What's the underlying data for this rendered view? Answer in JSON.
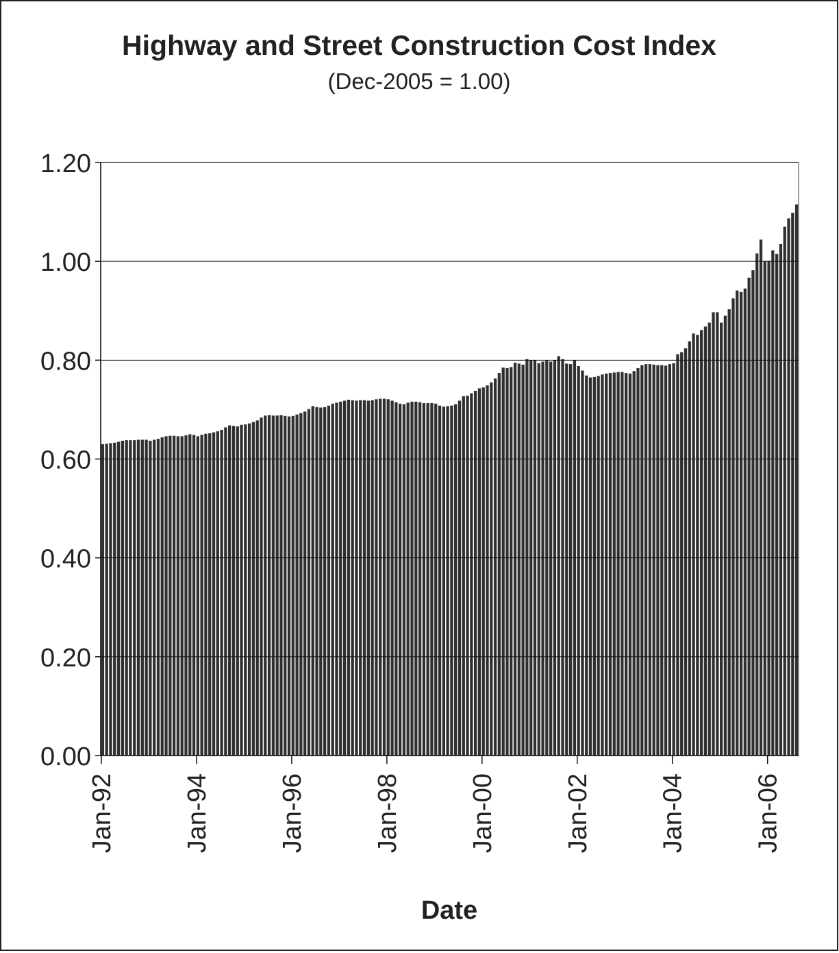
{
  "chart_data": {
    "type": "bar",
    "title": "Highway and Street Construction Cost Index",
    "subtitle": "(Dec-2005 = 1.00)",
    "x_label": "Date",
    "color": "#303030",
    "grid": true,
    "categories": [
      "Jan-92",
      null,
      null,
      null,
      null,
      null,
      null,
      null,
      null,
      null,
      null,
      null,
      null,
      null,
      null,
      null,
      null,
      null,
      null,
      null,
      null,
      null,
      null,
      null,
      "Jan-94",
      null,
      null,
      null,
      null,
      null,
      null,
      null,
      null,
      null,
      null,
      null,
      null,
      null,
      null,
      null,
      null,
      null,
      null,
      null,
      null,
      null,
      null,
      null,
      "Jan-96",
      null,
      null,
      null,
      null,
      null,
      null,
      null,
      null,
      null,
      null,
      null,
      null,
      null,
      null,
      null,
      null,
      null,
      null,
      null,
      null,
      null,
      null,
      null,
      "Jan-98",
      null,
      null,
      null,
      null,
      null,
      null,
      null,
      null,
      null,
      null,
      null,
      null,
      null,
      null,
      null,
      null,
      null,
      null,
      null,
      null,
      null,
      null,
      null,
      "Jan-00",
      null,
      null,
      null,
      null,
      null,
      null,
      null,
      null,
      null,
      null,
      null,
      null,
      null,
      null,
      null,
      null,
      null,
      null,
      null,
      null,
      null,
      null,
      null,
      "Jan-02",
      null,
      null,
      null,
      null,
      null,
      null,
      null,
      null,
      null,
      null,
      null,
      null,
      null,
      null,
      null,
      null,
      null,
      null,
      null,
      null,
      null,
      null,
      null,
      "Jan-04",
      null,
      null,
      null,
      null,
      null,
      null,
      null,
      null,
      null,
      null,
      null,
      null,
      null,
      null,
      null,
      null,
      null,
      null,
      null,
      null,
      null,
      null,
      null,
      "Jan-06",
      null,
      null,
      null,
      null,
      null,
      null,
      null
    ],
    "values": [
      0.63,
      0.631,
      0.632,
      0.633,
      0.635,
      0.637,
      0.638,
      0.638,
      0.638,
      0.639,
      0.639,
      0.639,
      0.637,
      0.639,
      0.641,
      0.644,
      0.646,
      0.647,
      0.647,
      0.646,
      0.646,
      0.648,
      0.65,
      0.649,
      0.646,
      0.649,
      0.651,
      0.652,
      0.654,
      0.656,
      0.659,
      0.664,
      0.668,
      0.667,
      0.666,
      0.669,
      0.67,
      0.672,
      0.675,
      0.678,
      0.684,
      0.688,
      0.689,
      0.688,
      0.688,
      0.689,
      0.687,
      0.686,
      0.687,
      0.69,
      0.693,
      0.696,
      0.701,
      0.707,
      0.705,
      0.704,
      0.705,
      0.708,
      0.712,
      0.714,
      0.716,
      0.718,
      0.72,
      0.719,
      0.718,
      0.719,
      0.719,
      0.718,
      0.719,
      0.721,
      0.722,
      0.722,
      0.721,
      0.718,
      0.715,
      0.712,
      0.711,
      0.714,
      0.716,
      0.716,
      0.715,
      0.713,
      0.713,
      0.713,
      0.712,
      0.708,
      0.706,
      0.707,
      0.708,
      0.711,
      0.718,
      0.727,
      0.728,
      0.733,
      0.738,
      0.743,
      0.745,
      0.749,
      0.755,
      0.763,
      0.774,
      0.785,
      0.784,
      0.786,
      0.795,
      0.793,
      0.791,
      0.802,
      0.8,
      0.8,
      0.794,
      0.797,
      0.8,
      0.797,
      0.8,
      0.808,
      0.802,
      0.793,
      0.792,
      0.8,
      0.788,
      0.779,
      0.769,
      0.765,
      0.766,
      0.768,
      0.771,
      0.773,
      0.774,
      0.775,
      0.776,
      0.776,
      0.774,
      0.773,
      0.778,
      0.784,
      0.79,
      0.792,
      0.792,
      0.791,
      0.79,
      0.79,
      0.789,
      0.792,
      0.794,
      0.812,
      0.816,
      0.824,
      0.838,
      0.854,
      0.851,
      0.861,
      0.868,
      0.876,
      0.897,
      0.897,
      0.876,
      0.89,
      0.903,
      0.925,
      0.941,
      0.938,
      0.945,
      0.967,
      0.982,
      1.016,
      1.044,
      1.0,
      1.001,
      1.022,
      1.015,
      1.035,
      1.07,
      1.087,
      1.098,
      1.115
    ],
    "ylim": [
      0,
      1.2
    ],
    "yticks": [
      {
        "value": 0,
        "label": "0.00"
      },
      {
        "value": 0.2,
        "label": "0.20"
      },
      {
        "value": 0.4,
        "label": "0.40"
      },
      {
        "value": 0.6,
        "label": "0.60"
      },
      {
        "value": 0.8,
        "label": "0.80"
      },
      {
        "value": 1,
        "label": "1.00"
      },
      {
        "value": 1.2,
        "label": "1.20"
      }
    ]
  }
}
